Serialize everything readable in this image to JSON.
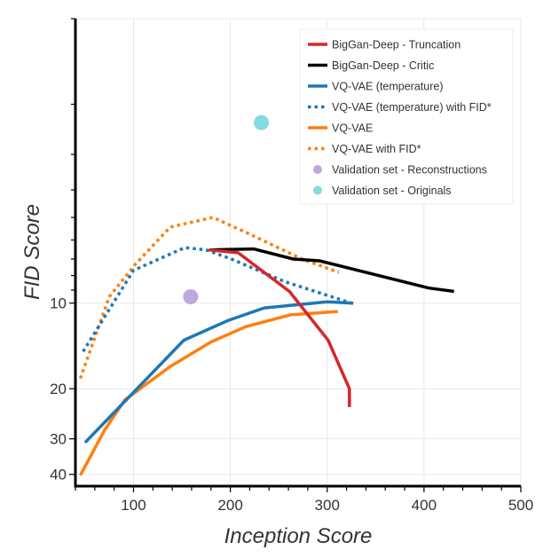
{
  "chart_data": {
    "type": "line",
    "title": "",
    "xlabel": "Inception Score",
    "ylabel": "FID Score",
    "xlim": [
      40,
      500
    ],
    "ylim": [
      1,
      44
    ],
    "y_scale": "log",
    "y_inverted": true,
    "grid": true,
    "legend_position": "top-right",
    "x_ticks": [
      100,
      200,
      300,
      400,
      500
    ],
    "y_ticks": [
      10,
      20,
      30,
      40
    ],
    "series": [
      {
        "name": "BigGan-Deep - Truncation",
        "color": "#d62728",
        "style": "solid",
        "x": [
          178,
          208,
          261,
          301,
          323,
          323
        ],
        "y": [
          6.5,
          6.65,
          9.1,
          13.5,
          20,
          23.2
        ]
      },
      {
        "name": "BigGan-Deep - Critic",
        "color": "#000000",
        "style": "solid",
        "x": [
          178,
          224,
          265,
          292,
          405,
          431
        ],
        "y": [
          6.5,
          6.45,
          7.0,
          7.1,
          8.85,
          9.1
        ]
      },
      {
        "name": "VQ-VAE (temperature)",
        "color": "#1f77b4",
        "style": "solid",
        "x": [
          50,
          152,
          198,
          235,
          300,
          327
        ],
        "y": [
          30.9,
          13.5,
          11.5,
          10.4,
          9.9,
          10.0
        ]
      },
      {
        "name": "VQ-VAE (temperature) with FID*",
        "color": "#1f77b4",
        "style": "dotted",
        "x": [
          48,
          100,
          153,
          175,
          201,
          256,
          329
        ],
        "y": [
          14.8,
          7.67,
          6.38,
          6.5,
          7.0,
          8.4,
          10.1
        ]
      },
      {
        "name": "VQ-VAE",
        "color": "#ff7f0e",
        "style": "solid",
        "x": [
          45,
          70,
          91,
          138,
          180,
          216,
          262,
          311
        ],
        "y": [
          40.3,
          28,
          21.9,
          16.7,
          13.7,
          12.1,
          11.0,
          10.7
        ]
      },
      {
        "name": "VQ-VAE with FID*",
        "color": "#ff7f0e",
        "style": "dotted",
        "x": [
          45,
          75,
          102,
          138,
          182,
          219,
          274,
          312
        ],
        "y": [
          18.4,
          9.5,
          7.3,
          5.4,
          5.0,
          5.7,
          7.0,
          7.8
        ]
      },
      {
        "name": "Validation set - Reconstructions",
        "color": "#b39ad6",
        "style": "marker",
        "x": [
          159
        ],
        "y": [
          9.5
        ]
      },
      {
        "name": "Validation set - Originals",
        "color": "#6fd3dc",
        "style": "marker",
        "x": [
          232
        ],
        "y": [
          2.32
        ]
      }
    ]
  }
}
